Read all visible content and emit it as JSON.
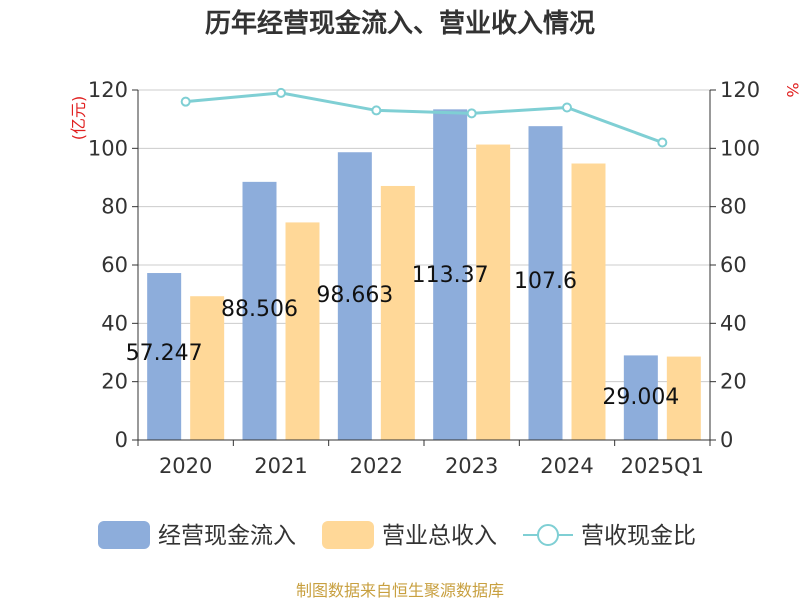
{
  "title": "历年经营现金流入、营业收入情况",
  "left_unit": "(亿元)",
  "right_unit": "%",
  "source": "制图数据来自恒生聚源数据库",
  "colors": {
    "cash_inflow": "#8daddb",
    "revenue": "#ffd898",
    "ratio": "#7fcfd4",
    "grid": "#cccccc",
    "axis": "#333333",
    "unit": "#e02020",
    "source": "#c8a040"
  },
  "legend": [
    {
      "label": "经营现金流入",
      "kind": "bar",
      "color": "#8daddb"
    },
    {
      "label": "营业总收入",
      "kind": "bar",
      "color": "#ffd898"
    },
    {
      "label": "营收现金比",
      "kind": "line",
      "color": "#7fcfd4"
    }
  ],
  "chart_data": {
    "type": "bar",
    "categories": [
      "2020",
      "2021",
      "2022",
      "2023",
      "2024",
      "2025Q1"
    ],
    "series": [
      {
        "name": "经营现金流入",
        "type": "bar",
        "axis": "left",
        "values": [
          57.247,
          88.506,
          98.663,
          113.37,
          107.6,
          29.004
        ]
      },
      {
        "name": "营业总收入",
        "type": "bar",
        "axis": "left",
        "values": [
          49.3,
          74.6,
          87.1,
          101.3,
          94.8,
          28.6
        ]
      },
      {
        "name": "营收现金比",
        "type": "line",
        "axis": "right",
        "values": [
          116,
          119,
          113,
          112,
          114,
          102
        ]
      }
    ],
    "data_labels": [
      "57.247",
      "88.506",
      "98.663",
      "113.37",
      "107.6",
      "29.004"
    ],
    "left_axis": {
      "min": 0,
      "max": 120,
      "ticks": [
        0,
        20,
        40,
        60,
        80,
        100,
        120
      ]
    },
    "right_axis": {
      "min": 0,
      "max": 120,
      "ticks": [
        0,
        20,
        40,
        60,
        80,
        100,
        120
      ]
    },
    "grid": true,
    "legend_position": "bottom"
  }
}
